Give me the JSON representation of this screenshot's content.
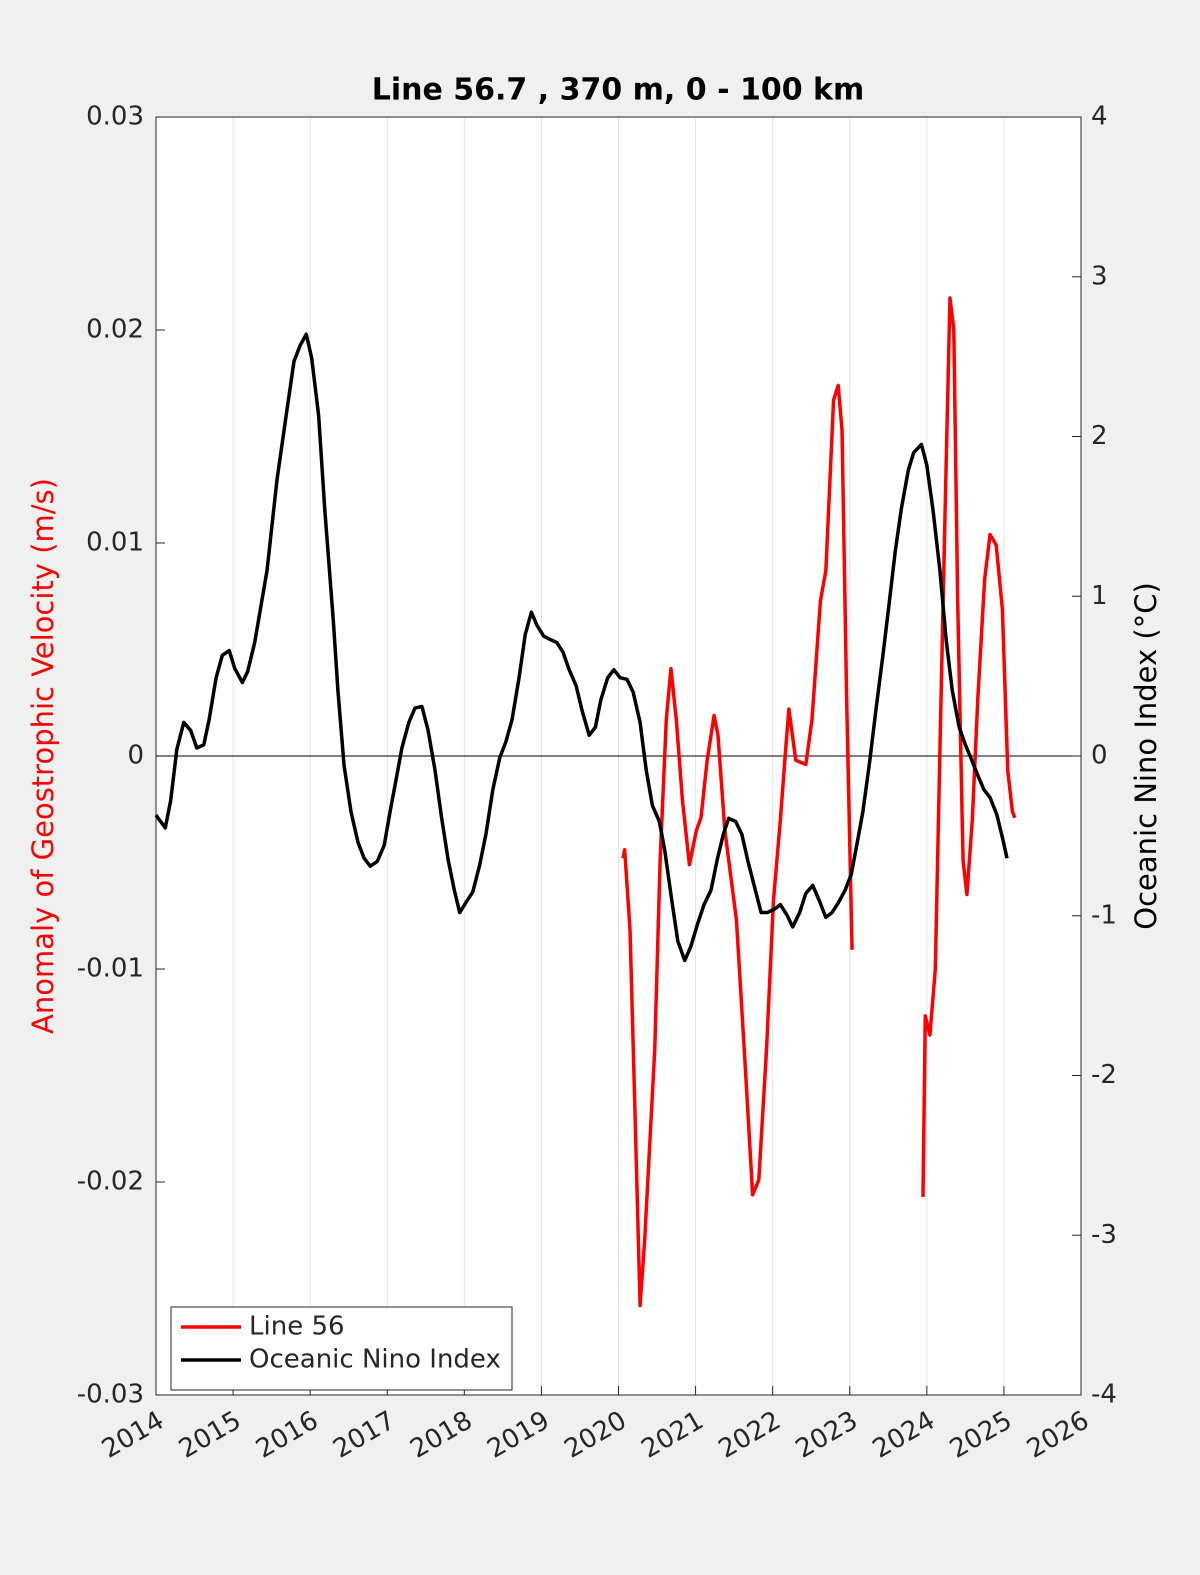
{
  "chart_data": {
    "type": "line",
    "title": "Line 56.7 , 370 m, 0 - 100 km",
    "ylabel": "Anomaly of Geostrophic Velocity (m/s)",
    "y2label": "Oceanic Nino Index (°C)",
    "xlim": [
      2014,
      2026
    ],
    "xticks": [
      2014,
      2015,
      2016,
      2017,
      2018,
      2019,
      2020,
      2021,
      2022,
      2023,
      2024,
      2025,
      2026
    ],
    "ylim": [
      -0.03,
      0.03
    ],
    "yticks": [
      -0.03,
      -0.02,
      -0.01,
      0,
      0.01,
      0.02,
      0.03
    ],
    "y2lim": [
      -4,
      4
    ],
    "y2ticks": [
      -4,
      -3,
      -2,
      -1,
      0,
      1,
      2,
      3,
      4
    ],
    "xgrid": true,
    "zero_line": true,
    "legend": "lower-left",
    "ylabel_color": "#ff0000",
    "series": [
      {
        "name": "Line 56",
        "color": "#ff0000",
        "axis": "y",
        "x": [
          2020.06,
          2020.08,
          2020.15,
          2020.21,
          2020.28,
          2020.34,
          2020.47,
          2020.54,
          2020.62,
          2020.68,
          2020.75,
          2020.83,
          2020.92,
          2021.01,
          2021.07,
          2021.15,
          2021.24,
          2021.29,
          2021.38,
          2021.53,
          2021.64,
          2021.74,
          2021.82,
          2021.92,
          2022.01,
          2022.1,
          2022.16,
          2022.21,
          2022.3,
          2022.43,
          2022.51,
          2022.62,
          2022.69,
          2022.79,
          2022.85,
          2022.9,
          2022.96,
          2023.03,
          2023.5,
          2023.95,
          2023.98,
          2024.04,
          2024.11,
          2024.17,
          2024.24,
          2024.3,
          2024.35,
          2024.4,
          2024.47,
          2024.52,
          2024.59,
          2024.66,
          2024.75,
          2024.82,
          2024.9,
          2024.98,
          2025.05,
          2025.11,
          2025.14
        ],
        "values": [
          -0.0048,
          -0.0044,
          -0.0082,
          -0.0162,
          -0.0258,
          -0.0227,
          -0.0138,
          -0.0049,
          0.0017,
          0.0041,
          0.0017,
          -0.0021,
          -0.0051,
          -0.0035,
          -0.0029,
          -0.0002,
          0.0019,
          0.001,
          -0.0035,
          -0.0077,
          -0.0143,
          -0.0206,
          -0.0199,
          -0.0138,
          -0.0068,
          -0.003,
          -0.0001,
          0.0022,
          -0.0002,
          -0.0004,
          0.0017,
          0.0073,
          0.0087,
          0.0167,
          0.0174,
          0.0153,
          0.0026,
          -0.0091,
          null,
          -0.0207,
          -0.0122,
          -0.0131,
          -0.01,
          0.0003,
          0.012,
          0.0215,
          0.02,
          0.0073,
          -0.0049,
          -0.0065,
          -0.003,
          0.0026,
          0.0083,
          0.0104,
          0.0099,
          0.0069,
          -0.0007,
          -0.0026,
          -0.0029
        ]
      },
      {
        "name": "Oceanic Nino Index",
        "color": "#000000",
        "axis": "y2",
        "x": [
          2014.0,
          2014.12,
          2014.19,
          2014.27,
          2014.36,
          2014.45,
          2014.53,
          2014.62,
          2014.69,
          2014.78,
          2014.86,
          2014.95,
          2015.02,
          2015.12,
          2015.19,
          2015.28,
          2015.44,
          2015.57,
          2015.7,
          2015.79,
          2015.87,
          2015.95,
          2016.02,
          2016.11,
          2016.19,
          2016.3,
          2016.36,
          2016.44,
          2016.53,
          2016.62,
          2016.7,
          2016.78,
          2016.87,
          2016.96,
          2017.04,
          2017.11,
          2017.19,
          2017.28,
          2017.36,
          2017.45,
          2017.53,
          2017.62,
          2017.7,
          2017.79,
          2017.87,
          2017.94,
          2018.03,
          2018.11,
          2018.2,
          2018.28,
          2018.37,
          2018.46,
          2018.54,
          2018.62,
          2018.71,
          2018.79,
          2018.87,
          2018.94,
          2019.03,
          2019.11,
          2019.2,
          2019.28,
          2019.36,
          2019.45,
          2019.53,
          2019.62,
          2019.7,
          2019.77,
          2019.86,
          2019.94,
          2020.02,
          2020.11,
          2020.19,
          2020.28,
          2020.36,
          2020.44,
          2020.53,
          2020.6,
          2020.69,
          2020.77,
          2020.86,
          2020.94,
          2021.02,
          2021.11,
          2021.2,
          2021.28,
          2021.36,
          2021.43,
          2021.52,
          2021.6,
          2021.68,
          2021.77,
          2021.85,
          2021.93,
          2022.02,
          2022.1,
          2022.19,
          2022.26,
          2022.35,
          2022.43,
          2022.52,
          2022.6,
          2022.69,
          2022.77,
          2022.85,
          2022.94,
          2023.02,
          2023.09,
          2023.17,
          2023.26,
          2023.34,
          2023.43,
          2023.51,
          2023.59,
          2023.67,
          2023.76,
          2023.83,
          2023.93,
          2024.0,
          2024.08,
          2024.17,
          2024.25,
          2024.33,
          2024.42,
          2024.5,
          2024.57,
          2024.66,
          2024.74,
          2024.82,
          2024.91,
          2024.99,
          2025.04
        ],
        "values": [
          -0.37,
          -0.45,
          -0.28,
          0.04,
          0.21,
          0.16,
          0.05,
          0.07,
          0.23,
          0.49,
          0.63,
          0.66,
          0.55,
          0.46,
          0.53,
          0.71,
          1.16,
          1.73,
          2.17,
          2.47,
          2.57,
          2.64,
          2.49,
          2.13,
          1.54,
          0.85,
          0.41,
          -0.06,
          -0.35,
          -0.54,
          -0.64,
          -0.69,
          -0.66,
          -0.56,
          -0.34,
          -0.16,
          0.05,
          0.21,
          0.3,
          0.31,
          0.16,
          -0.09,
          -0.37,
          -0.65,
          -0.84,
          -0.98,
          -0.91,
          -0.85,
          -0.68,
          -0.49,
          -0.21,
          -0.01,
          0.09,
          0.23,
          0.49,
          0.76,
          0.9,
          0.82,
          0.75,
          0.73,
          0.71,
          0.65,
          0.54,
          0.44,
          0.28,
          0.13,
          0.18,
          0.35,
          0.49,
          0.54,
          0.49,
          0.48,
          0.4,
          0.21,
          -0.09,
          -0.31,
          -0.41,
          -0.59,
          -0.9,
          -1.16,
          -1.28,
          -1.19,
          -1.06,
          -0.93,
          -0.84,
          -0.65,
          -0.49,
          -0.39,
          -0.41,
          -0.49,
          -0.66,
          -0.83,
          -0.98,
          -0.98,
          -0.96,
          -0.93,
          -1.0,
          -1.07,
          -0.98,
          -0.86,
          -0.81,
          -0.9,
          -1.01,
          -0.98,
          -0.92,
          -0.84,
          -0.74,
          -0.56,
          -0.35,
          -0.03,
          0.29,
          0.63,
          0.95,
          1.28,
          1.55,
          1.79,
          1.9,
          1.95,
          1.82,
          1.54,
          1.16,
          0.73,
          0.41,
          0.18,
          0.07,
          -0.01,
          -0.12,
          -0.21,
          -0.26,
          -0.37,
          -0.53,
          -0.64
        ]
      }
    ]
  }
}
